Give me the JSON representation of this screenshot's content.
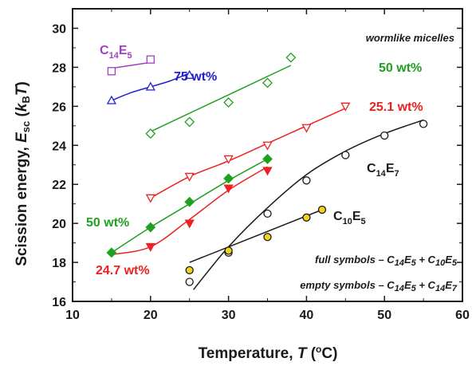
{
  "chart_data": {
    "type": "scatter",
    "title": "",
    "xlabel": "Temperature, T (°C)",
    "ylabel": "Scission energy, Esc (kBT)",
    "xlim": [
      10,
      60
    ],
    "ylim": [
      16,
      31
    ],
    "xticks": [
      10,
      20,
      30,
      40,
      50,
      60
    ],
    "yticks": [
      16,
      18,
      20,
      22,
      24,
      26,
      28,
      30
    ],
    "grid": false,
    "annotation": "wormlike micelles",
    "notes": {
      "full": {
        "prefix": "full symbols",
        "rest": "– C14E5 + C10E5"
      },
      "empty": {
        "prefix": "empty symbols",
        "rest": "– C14E5 + C14E7"
      }
    },
    "series": [
      {
        "name": "C14E5",
        "color": "#a040c0",
        "marker": "square",
        "filled": false,
        "x": [
          15,
          20
        ],
        "y": [
          27.8,
          28.4
        ],
        "fit": [
          [
            15,
            27.95
          ],
          [
            20,
            28.25
          ]
        ]
      },
      {
        "name": "75 wt%",
        "color": "#2020d0",
        "marker": "triangle-up",
        "filled": false,
        "x": [
          15,
          20,
          25
        ],
        "y": [
          26.3,
          27.0,
          27.6
        ],
        "fit": [
          [
            15,
            26.3
          ],
          [
            17.5,
            26.7
          ],
          [
            20,
            27.0
          ],
          [
            22.5,
            27.3
          ],
          [
            25,
            27.7
          ]
        ]
      },
      {
        "name": "50 wt%",
        "color": "#20a020",
        "marker": "diamond",
        "filled": false,
        "x": [
          20,
          25,
          30,
          35,
          38
        ],
        "y": [
          24.6,
          25.2,
          26.2,
          27.2,
          28.5
        ],
        "fit": [
          [
            20,
            24.7
          ],
          [
            38,
            28.1
          ]
        ]
      },
      {
        "name": "25.1 wt%",
        "color": "#ee2020",
        "marker": "triangle-down",
        "filled": false,
        "x": [
          20,
          25,
          30,
          35,
          40,
          45
        ],
        "y": [
          21.3,
          22.4,
          23.3,
          24.0,
          24.9,
          26.0
        ],
        "fit": [
          [
            20,
            21.3
          ],
          [
            25,
            22.4
          ],
          [
            30,
            23.2
          ],
          [
            35,
            24.1
          ],
          [
            40,
            25.0
          ],
          [
            45,
            25.9
          ]
        ]
      },
      {
        "name": "C14E7",
        "color": "#1a1a1a",
        "marker": "circle",
        "filled": false,
        "x": [
          25,
          30,
          35,
          40,
          45,
          50,
          55
        ],
        "y": [
          17.0,
          18.5,
          20.5,
          22.2,
          23.5,
          24.5,
          25.1
        ],
        "fit": [
          [
            25.5,
            16.6
          ],
          [
            30,
            18.8
          ],
          [
            35,
            20.8
          ],
          [
            40,
            22.5
          ],
          [
            45,
            23.7
          ],
          [
            50,
            24.6
          ],
          [
            55,
            25.3
          ]
        ]
      },
      {
        "name": "50 wt%",
        "color": "#20a020",
        "marker": "diamond",
        "filled": true,
        "x": [
          15,
          20,
          25,
          30,
          35
        ],
        "y": [
          18.5,
          19.8,
          21.1,
          22.3,
          23.3
        ],
        "fit": [
          [
            15,
            18.5
          ],
          [
            20,
            19.8
          ],
          [
            25,
            21.0
          ],
          [
            30,
            22.2
          ],
          [
            35,
            23.3
          ]
        ]
      },
      {
        "name": "24.7 wt%",
        "color": "#ee2020",
        "marker": "triangle-down",
        "filled": true,
        "x": [
          20,
          25,
          30,
          35
        ],
        "y": [
          18.8,
          20.0,
          21.8,
          22.7
        ],
        "fit": [
          [
            15,
            18.4
          ],
          [
            20,
            18.8
          ],
          [
            25,
            20.2
          ],
          [
            30,
            21.7
          ],
          [
            35,
            22.9
          ]
        ]
      },
      {
        "name": "C10E5",
        "color": "#1a1a1a",
        "marker": "circle",
        "filled": true,
        "fill": "#f2d21a",
        "x": [
          25,
          30,
          35,
          40,
          42
        ],
        "y": [
          17.6,
          18.6,
          19.3,
          20.3,
          20.7
        ],
        "fit": [
          [
            25,
            18.0
          ],
          [
            42,
            20.7
          ]
        ]
      }
    ]
  }
}
